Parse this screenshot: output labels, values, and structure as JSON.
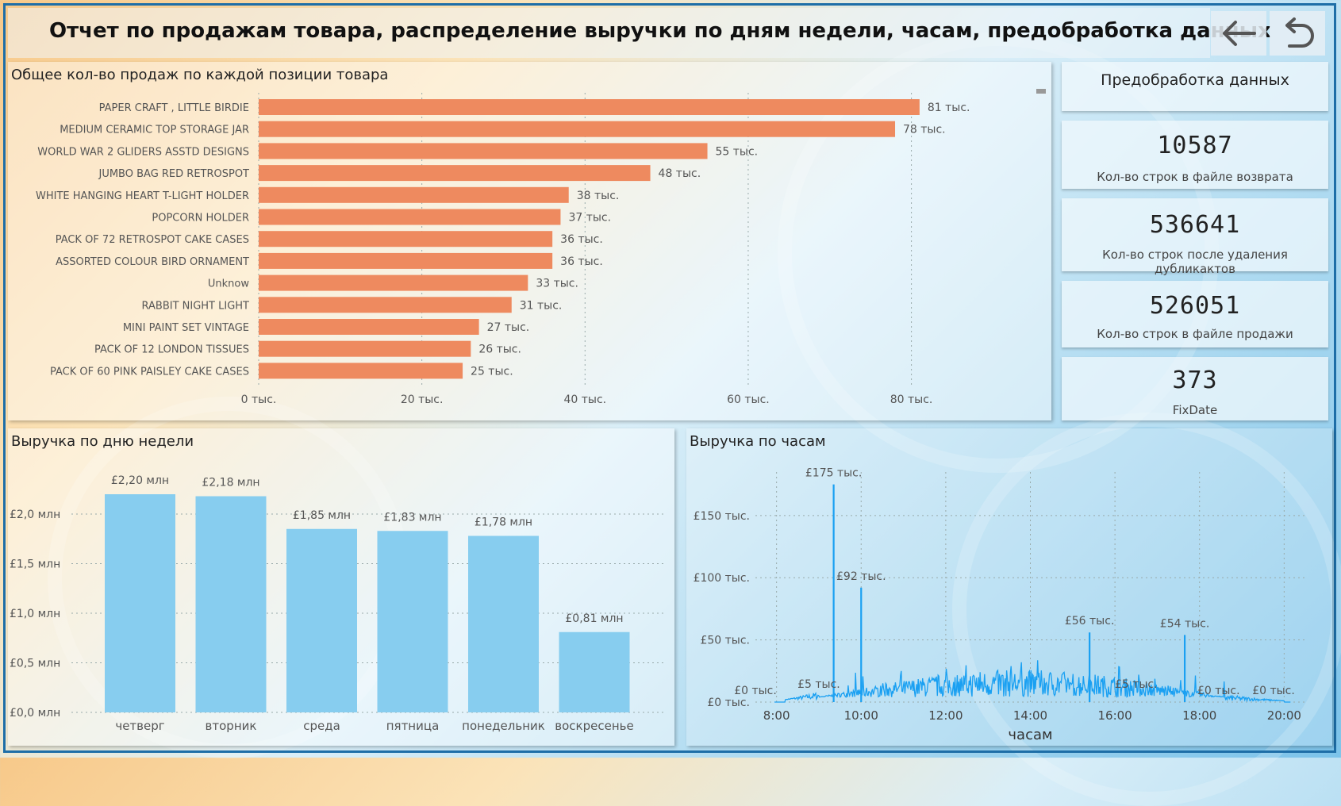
{
  "header": {
    "title": "Отчет по продажам товара, распределение выручки по дням недели, часам, предобработка данных",
    "back_icon": "arrow-left-icon",
    "reset_icon": "undo-icon"
  },
  "kpis": {
    "section_title": "Предобработка данных",
    "items": [
      {
        "value": "10587",
        "label": "Кол-во строк в файле возврата"
      },
      {
        "value": "536641",
        "label": "Кол-во строк после удаления дубликактов"
      },
      {
        "value": "526051",
        "label": "Кол-во строк в файле продажи"
      },
      {
        "value": "373",
        "label": "FixDate"
      }
    ]
  },
  "colors": {
    "bar_orange": "#ee8a5f",
    "bar_blue": "#87cdef",
    "line_blue": "#1aa0f2"
  },
  "chart_data": [
    {
      "type": "bar",
      "orientation": "horizontal",
      "title": "Общее кол-во продаж по каждой позиции товара",
      "categories": [
        "PAPER CRAFT , LITTLE BIRDIE",
        "MEDIUM CERAMIC TOP STORAGE JAR",
        "WORLD WAR 2 GLIDERS ASSTD DESIGNS",
        "JUMBO BAG RED RETROSPOT",
        "WHITE HANGING HEART T-LIGHT HOLDER",
        "POPCORN HOLDER",
        "PACK OF 72 RETROSPOT CAKE CASES",
        "ASSORTED COLOUR BIRD ORNAMENT",
        "Unknow",
        "RABBIT NIGHT LIGHT",
        "MINI PAINT SET VINTAGE",
        "PACK OF 12 LONDON TISSUES",
        "PACK OF 60 PINK PAISLEY CAKE CASES"
      ],
      "values": [
        81,
        78,
        55,
        48,
        38,
        37,
        36,
        36,
        33,
        31,
        27,
        26,
        25
      ],
      "data_labels": [
        "81 тыс.",
        "78 тыс.",
        "55 тыс.",
        "48 тыс.",
        "38 тыс.",
        "37 тыс.",
        "36 тыс.",
        "36 тыс.",
        "33 тыс.",
        "31 тыс.",
        "27 тыс.",
        "26 тыс.",
        "25 тыс."
      ],
      "xlim": [
        0,
        85
      ],
      "x_ticks": [
        0,
        20,
        40,
        60,
        80
      ],
      "x_tick_labels": [
        "0 тыс.",
        "20 тыс.",
        "40 тыс.",
        "60 тыс.",
        "80 тыс."
      ],
      "grid": true
    },
    {
      "type": "bar",
      "title": "Выручка по дню недели",
      "categories": [
        "четверг",
        "вторник",
        "среда",
        "пятница",
        "понедельник",
        "воскресенье"
      ],
      "values": [
        2.2,
        2.18,
        1.85,
        1.83,
        1.78,
        0.81
      ],
      "data_labels": [
        "£2,20 млн",
        "£2,18 млн",
        "£1,85 млн",
        "£1,83 млн",
        "£1,78 млн",
        "£0,81 млн"
      ],
      "ylim": [
        0,
        2.4
      ],
      "y_ticks": [
        0,
        0.5,
        1.0,
        1.5,
        2.0
      ],
      "y_tick_labels": [
        "£0,0 млн",
        "£0,5 млн",
        "£1,0 млн",
        "£1,5 млн",
        "£2,0 млн"
      ],
      "grid": true
    },
    {
      "type": "line",
      "title": "Выручка по часам",
      "xlabel": "часам",
      "xlim": [
        7.5,
        20.5
      ],
      "x_ticks": [
        8,
        10,
        12,
        14,
        16,
        18,
        20
      ],
      "x_tick_labels": [
        "8:00",
        "10:00",
        "12:00",
        "14:00",
        "16:00",
        "18:00",
        "20:00"
      ],
      "ylim": [
        0,
        185
      ],
      "y_ticks": [
        0,
        50,
        100,
        150
      ],
      "y_tick_labels": [
        "£0 тыс.",
        "£50 тыс.",
        "£100 тыс.",
        "£150 тыс."
      ],
      "grid": true,
      "annotations": [
        {
          "x": 7.5,
          "y": 0,
          "label": "£0 тыс."
        },
        {
          "x": 9.0,
          "y": 5,
          "label": "£5 тыс."
        },
        {
          "x": 9.35,
          "y": 175,
          "label": "£175 тыс."
        },
        {
          "x": 10.0,
          "y": 92,
          "label": "£92 тыс."
        },
        {
          "x": 15.4,
          "y": 56,
          "label": "£56 тыс."
        },
        {
          "x": 16.5,
          "y": 5,
          "label": "£5 тыс."
        },
        {
          "x": 17.65,
          "y": 54,
          "label": "£54 тыс."
        },
        {
          "x": 18.45,
          "y": 0,
          "label": "£0 тыс."
        },
        {
          "x": 19.75,
          "y": 0,
          "label": "£0 тыс."
        }
      ],
      "spikes": [
        {
          "x": 9.35,
          "y": 175
        },
        {
          "x": 10.0,
          "y": 92
        },
        {
          "x": 15.4,
          "y": 56
        },
        {
          "x": 17.65,
          "y": 54
        }
      ]
    }
  ]
}
